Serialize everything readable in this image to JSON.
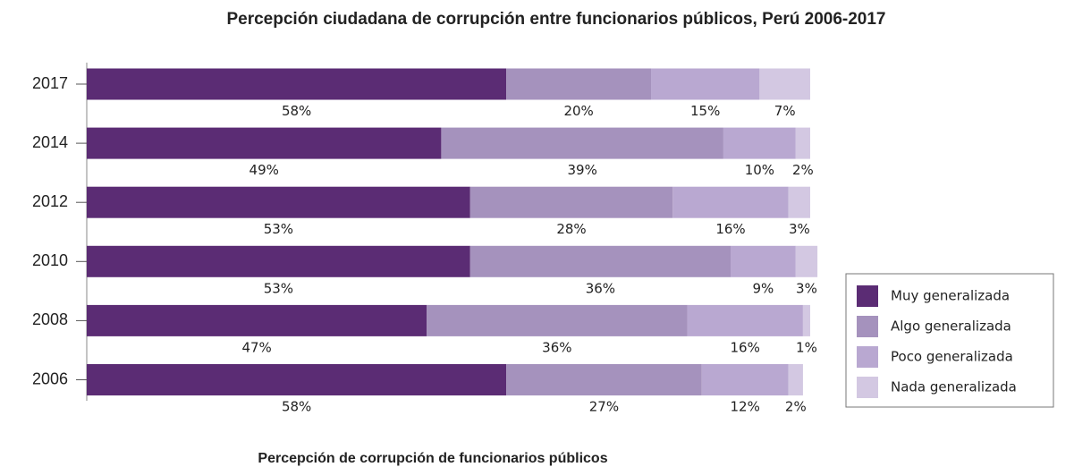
{
  "chart_data": {
    "type": "bar",
    "orientation": "horizontal",
    "stacked": true,
    "title": "Percepción ciudadana de corrupción entre funcionarios públicos, Perú 2006-2017",
    "xlabel": "Percepción de corrupción de funcionarios públicos",
    "categories": [
      "2017",
      "2014",
      "2012",
      "2010",
      "2008",
      "2006"
    ],
    "xlim": [
      0,
      100
    ],
    "legend": "right",
    "series": [
      {
        "name": "Muy generalizada",
        "color": "#5b2c74",
        "values": [
          58,
          49,
          53,
          53,
          47,
          58
        ],
        "value_labels": [
          "58%",
          "49%",
          "53%",
          "53%",
          "47%",
          "58%"
        ]
      },
      {
        "name": "Algo generalizada",
        "color": "#a592bd",
        "values": [
          20,
          39,
          28,
          36,
          36,
          27
        ],
        "value_labels": [
          "20%",
          "39%",
          "28%",
          "36%",
          "36%",
          "27%"
        ]
      },
      {
        "name": "Poco generalizada",
        "color": "#b9a8d1",
        "values": [
          15,
          10,
          16,
          9,
          16,
          12
        ],
        "value_labels": [
          "15%",
          "10%",
          "16%",
          "9%",
          "16%",
          "12%"
        ]
      },
      {
        "name": "Nada generalizada",
        "color": "#d3c8e2",
        "values": [
          7,
          2,
          3,
          3,
          1,
          2
        ],
        "value_labels": [
          "7%",
          "2%",
          "3%",
          "3%",
          "1%",
          "2%"
        ]
      }
    ]
  }
}
